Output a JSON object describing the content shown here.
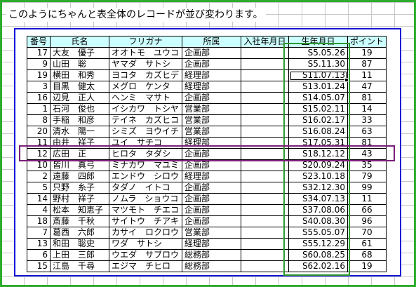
{
  "caption": "このようにちゃんと表全体のレコードが並び変わります。",
  "table": {
    "headers": [
      "番号",
      "氏名",
      "フリガナ",
      "所属",
      "入社年月日",
      "生年月日",
      "ポイント"
    ],
    "rows": [
      [
        "17",
        "大友　優子",
        "オオトモ　ユウコ",
        "企画部",
        "",
        "S5.05.26",
        "19"
      ],
      [
        "9",
        "山田　聡",
        "ヤマダ　サトシ",
        "企画部",
        "",
        "S5.11.30",
        "87"
      ],
      [
        "19",
        "横田　和秀",
        "ヨコタ　カズヒデ",
        "経理部",
        "",
        "S11.07.13",
        "11"
      ],
      [
        "3",
        "目黒　健太",
        "メグロ　ケンタ",
        "経理部",
        "",
        "S13.01.24",
        "47"
      ],
      [
        "16",
        "辺見　正人",
        "ヘンミ　マサト",
        "企画部",
        "",
        "S14.05.07",
        "81"
      ],
      [
        "1",
        "石河　俊也",
        "イシカワ　トシヤ",
        "営業部",
        "",
        "S15.02.11",
        "14"
      ],
      [
        "8",
        "手稲　和彦",
        "テイネ　カズヒコ",
        "営業部",
        "",
        "S16.02.17",
        "33"
      ],
      [
        "20",
        "清水　陽一",
        "シミズ　ヨウイチ",
        "営業部",
        "",
        "S16.08.24",
        "63"
      ],
      [
        "11",
        "由井　祥子",
        "ユイ　サチコ",
        "経理部",
        "",
        "S17.05.31",
        "81"
      ],
      [
        "12",
        "広田　正",
        "ヒロタ　タダシ",
        "企画部",
        "",
        "S18.12.12",
        "43"
      ],
      [
        "10",
        "皆川　真弓",
        "ミナカワ　マユミ",
        "企画部",
        "",
        "S20.09.24",
        "35"
      ],
      [
        "2",
        "遠藤　四郎",
        "エンドウ　シロウ",
        "経理部",
        "",
        "S23.10.18",
        "79"
      ],
      [
        "5",
        "只野　糸子",
        "タダノ　イトコ",
        "企画部",
        "",
        "S32.12.30",
        "99"
      ],
      [
        "14",
        "野村　祥子",
        "ノムラ　ショウコ",
        "企画部",
        "",
        "S34.07.13",
        "11"
      ],
      [
        "4",
        "松本　知恵子",
        "マツモト　チエコ",
        "企画部",
        "",
        "S37.08.06",
        "66"
      ],
      [
        "18",
        "斎藤　千秋",
        "サイトウ　チアキ",
        "企画部",
        "",
        "S40.08.30",
        "96"
      ],
      [
        "7",
        "葛西　六郎",
        "カサイ　ロクロウ",
        "営業部",
        "",
        "S55.05.07",
        "70"
      ],
      [
        "13",
        "和田　聡史",
        "ワダ　サトシ",
        "経理部",
        "",
        "S55.12.29",
        "61"
      ],
      [
        "6",
        "上田　三郎",
        "ウエダ　サブロウ",
        "総務部",
        "",
        "S60.08.25",
        "68"
      ],
      [
        "15",
        "江島　千尋",
        "エジマ　チヒロ",
        "総務部",
        "",
        "S62.02.16",
        "19"
      ]
    ]
  }
}
